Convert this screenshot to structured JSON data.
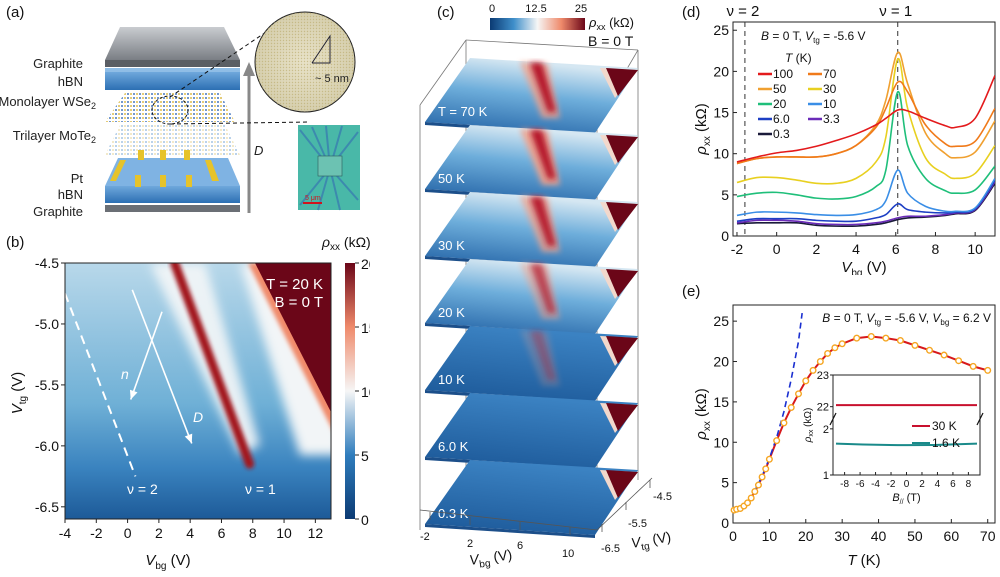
{
  "panels": {
    "a": {
      "label": "(a)",
      "layers": [
        "Graphite",
        "hBN",
        "Monolayer WSe",
        "Trilayer MoTe",
        "Pt",
        "hBN",
        "Graphite"
      ],
      "layer_subscripts": [
        "",
        "",
        "2",
        "2",
        "",
        "",
        ""
      ],
      "field_arrow_label": "D",
      "zoom_scale": "~ 5 nm",
      "optical_scale": "5 μm"
    },
    "b": {
      "label": "(b)",
      "annot_T": "T = 20 K",
      "annot_B": "B = 0 T",
      "arrow_n": "n",
      "arrow_D": "D",
      "nu2": "ν = 2",
      "nu1": "ν = 1",
      "colorbar_title": "ρxx (kΩ)",
      "xlabel": "Vbg (V)",
      "ylabel": "Vtg (V)"
    },
    "c": {
      "label": "(c)",
      "colorbar_ticks": [
        "0",
        "12.5",
        "25"
      ],
      "colorbar_title": "ρxx (kΩ)",
      "field": "B = 0 T",
      "slices": [
        "T = 70 K",
        "50 K",
        "30 K",
        "20 K",
        "10 K",
        "6.0 K",
        "0.3 K"
      ],
      "xticks": [
        "-2",
        "2",
        "6",
        "10"
      ],
      "yticks": [
        "-4.5",
        "-5.5",
        "-6.5"
      ],
      "xlabel": "Vbg (V)",
      "ylabel": "Vtg (V)"
    },
    "d": {
      "label": "(d)"
    },
    "e": {
      "label": "(e)"
    }
  },
  "chart_data": [
    {
      "panel": "b",
      "type": "heatmap",
      "title": "T = 20 K, B = 0 T",
      "xlabel": "Vbg (V)",
      "ylabel": "Vtg (V)",
      "xlim": [
        -4,
        13
      ],
      "ylim": [
        -6.6,
        -4.5
      ],
      "xticks": [
        -4,
        -2,
        0,
        2,
        4,
        6,
        8,
        10,
        12
      ],
      "yticks": [
        -4.5,
        -5.0,
        -5.5,
        -6.0,
        -6.5
      ],
      "colorbar": {
        "label": "ρxx (kΩ)",
        "range": [
          0,
          20
        ],
        "ticks": [
          0,
          5,
          10,
          15,
          20
        ]
      },
      "features": [
        {
          "name": "ν = 1 resistive ridge",
          "from": [
            3.0,
            -4.5
          ],
          "to": [
            7.8,
            -6.15
          ]
        },
        {
          "name": "ν = 2 dashed line",
          "from": [
            -4,
            -4.75
          ],
          "to": [
            0.5,
            -6.25
          ]
        },
        {
          "name": "n arrow",
          "from": [
            2.2,
            -4.9
          ],
          "to": [
            0.2,
            -5.62
          ]
        },
        {
          "name": "D arrow",
          "from": [
            0.3,
            -4.72
          ],
          "to": [
            4.1,
            -5.98
          ]
        }
      ]
    },
    {
      "panel": "d",
      "type": "line",
      "title": "B = 0 T, Vtg = -5.6 V",
      "xlabel": "Vbg (V)",
      "ylabel": "ρxx (kΩ)",
      "xlim": [
        -2.2,
        11
      ],
      "ylim": [
        0,
        26
      ],
      "xticks": [
        -2,
        0,
        2,
        4,
        6,
        8,
        10
      ],
      "yticks": [
        0,
        5,
        10,
        15,
        20,
        25
      ],
      "legend_title": "T (K)",
      "legend_position": "top-left",
      "vlines": [
        {
          "x": -1.6,
          "label": "ν = 2"
        },
        {
          "x": 6.1,
          "label": "ν = 1"
        }
      ],
      "x": [
        -2,
        -1,
        0,
        1,
        2,
        3,
        4,
        5,
        5.5,
        6.1,
        6.6,
        7.5,
        8.5,
        9,
        10,
        11
      ],
      "series": [
        {
          "name": "100",
          "color": "#e31a1c",
          "values": [
            9.0,
            9.6,
            10.1,
            10.4,
            10.9,
            11.6,
            12.4,
            13.5,
            14.3,
            15.3,
            15.2,
            14.3,
            13.4,
            13.2,
            14.3,
            19.5
          ]
        },
        {
          "name": "70",
          "color": "#f07a1a",
          "values": [
            8.8,
            9.4,
            9.6,
            9.6,
            9.6,
            10.0,
            11.0,
            13.2,
            15.5,
            18.7,
            17.5,
            13.5,
            11.2,
            10.9,
            11.5,
            15.5
          ]
        },
        {
          "name": "50",
          "color": "#f0a030",
          "values": [
            8.8,
            9.4,
            9.6,
            9.6,
            9.6,
            10.0,
            11.0,
            13.5,
            16.5,
            22.3,
            18.5,
            12.5,
            10.0,
            9.5,
            10.2,
            14.0
          ]
        },
        {
          "name": "30",
          "color": "#e8d020",
          "values": [
            6.5,
            7.1,
            7.1,
            6.8,
            6.4,
            6.4,
            7.0,
            9.0,
            12.0,
            21.5,
            15.5,
            9.5,
            7.5,
            7.0,
            7.6,
            11.0
          ]
        },
        {
          "name": "20",
          "color": "#1fbf7a",
          "values": [
            4.8,
            5.2,
            5.3,
            5.0,
            4.6,
            4.5,
            4.8,
            6.0,
            8.0,
            17.5,
            11.0,
            7.0,
            5.5,
            5.2,
            5.6,
            8.5
          ]
        },
        {
          "name": "10",
          "color": "#3a8ee6",
          "values": [
            2.5,
            2.9,
            2.9,
            2.8,
            2.6,
            2.5,
            2.6,
            3.2,
            4.3,
            8.0,
            5.2,
            3.6,
            3.0,
            3.0,
            3.4,
            7.0
          ]
        },
        {
          "name": "6.0",
          "color": "#1d3fc4",
          "values": [
            1.8,
            2.1,
            2.1,
            2.1,
            1.9,
            1.8,
            1.8,
            2.2,
            2.6,
            3.9,
            3.2,
            2.9,
            2.8,
            2.9,
            3.3,
            6.8
          ]
        },
        {
          "name": "3.3",
          "color": "#6a2bb8",
          "values": [
            1.6,
            1.9,
            1.9,
            1.8,
            1.5,
            1.4,
            1.4,
            1.6,
            1.8,
            2.2,
            2.4,
            2.4,
            2.6,
            2.8,
            3.2,
            6.6
          ]
        },
        {
          "name": "0.3",
          "color": "#1a1a3a",
          "values": [
            1.5,
            1.6,
            1.6,
            1.6,
            1.3,
            1.2,
            1.2,
            1.4,
            1.6,
            2.0,
            2.2,
            2.3,
            2.5,
            2.7,
            3.1,
            6.4
          ]
        }
      ]
    },
    {
      "panel": "e",
      "type": "scatter",
      "title": "B = 0 T, Vtg = -5.6 V, Vbg = 6.2 V",
      "xlabel": "T (K)",
      "ylabel": "ρxx (kΩ)",
      "xlim": [
        0,
        72
      ],
      "ylim": [
        0,
        27
      ],
      "xticks": [
        0,
        10,
        20,
        30,
        40,
        50,
        60,
        70
      ],
      "yticks": [
        0,
        5,
        10,
        15,
        20,
        25
      ],
      "series": [
        {
          "name": "data",
          "color": "#f5a623",
          "marker": "open-circle",
          "x": [
            0.3,
            1,
            2,
            3,
            4,
            5,
            6,
            7,
            8,
            9,
            10,
            12,
            14,
            16,
            18,
            20,
            22,
            24,
            26,
            28,
            30,
            34,
            38,
            42,
            46,
            50,
            54,
            58,
            62,
            66,
            70
          ],
          "y": [
            1.6,
            1.7,
            1.8,
            2.1,
            2.5,
            3.1,
            3.9,
            4.7,
            5.7,
            6.7,
            7.9,
            10.2,
            12.4,
            14.3,
            16.0,
            17.6,
            18.9,
            20.0,
            21.0,
            21.7,
            22.2,
            22.9,
            23.1,
            22.9,
            22.6,
            22.0,
            21.4,
            20.8,
            20.1,
            19.4,
            18.9
          ]
        },
        {
          "name": "fit",
          "color": "#d7191c",
          "style": "solid"
        },
        {
          "name": "low-T fit",
          "color": "#1a2fd0",
          "style": "dashed",
          "x": [
            0,
            2,
            4,
            6,
            8,
            10,
            12,
            14,
            16,
            18,
            19
          ],
          "y": [
            1.5,
            1.8,
            2.6,
            4.0,
            5.8,
            8.0,
            10.6,
            13.8,
            17.8,
            22.5,
            26.0
          ]
        }
      ],
      "inset": {
        "xlabel": "B// (T)",
        "ylabel": "ρxx (kΩ)",
        "xlim": [
          -9.5,
          9.5
        ],
        "xticks": [
          -8,
          -6,
          -4,
          -2,
          0,
          2,
          4,
          6,
          8
        ],
        "yticks_upper": [
          22,
          23
        ],
        "yticks_lower": [
          1,
          2
        ],
        "axis_break": true,
        "series": [
          {
            "name": "30 K",
            "color": "#c8102e",
            "value": 22.05
          },
          {
            "name": "1.6 K",
            "color": "#1a8a8a",
            "value": 1.68
          }
        ]
      }
    }
  ]
}
